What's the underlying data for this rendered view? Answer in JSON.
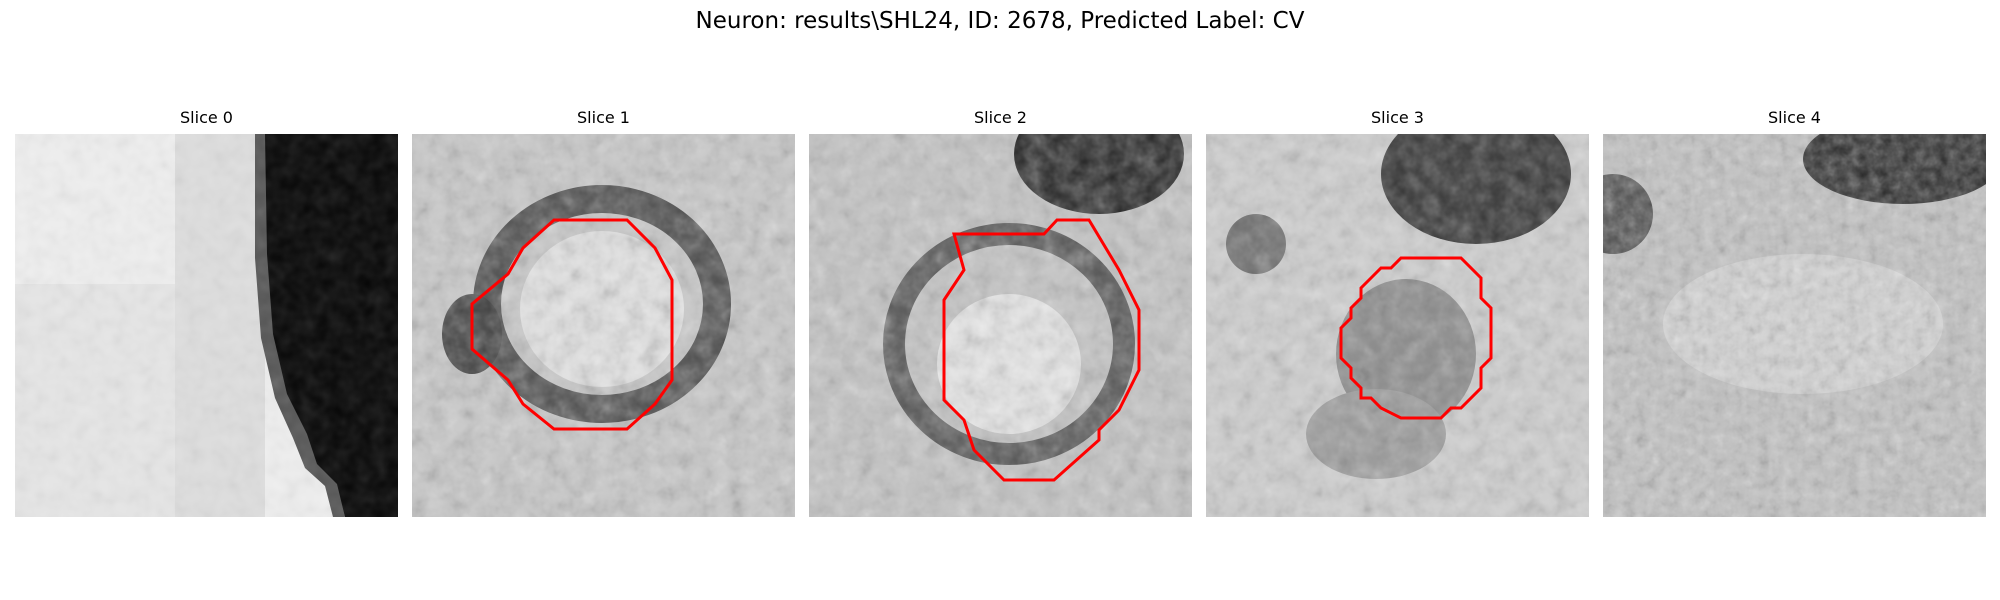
{
  "figure": {
    "title": "Neuron: results\\SHL24, ID: 2678, Predicted Label: CV"
  },
  "contour_color": "#ff0000",
  "slices": [
    {
      "title": "Slice 0"
    },
    {
      "title": "Slice 1"
    },
    {
      "title": "Slice 2"
    },
    {
      "title": "Slice 3"
    },
    {
      "title": "Slice 4"
    }
  ]
}
